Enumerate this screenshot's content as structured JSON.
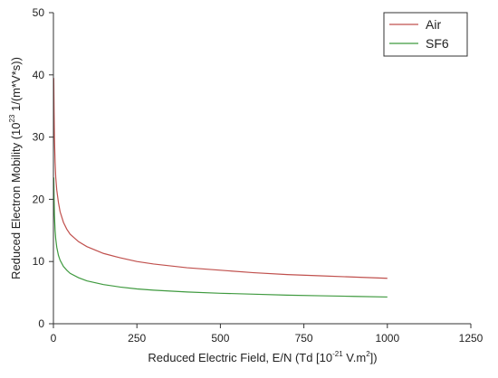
{
  "chart_data": {
    "type": "line",
    "xlabel": {
      "prefix": "Reduced Electric Field, E/N (Td [10",
      "exp1": "-21",
      "middle": " V.m",
      "exp2": "2",
      "suffix": "])"
    },
    "ylabel": {
      "prefix": "Reduced Electron Mobility (10",
      "exp": "23",
      "suffix": " 1/(m*V*s))"
    },
    "xlim": [
      0,
      1250
    ],
    "ylim": [
      0,
      50
    ],
    "xticks": [
      "0",
      "250",
      "500",
      "750",
      "1000",
      "1250"
    ],
    "yticks": [
      "0",
      "10",
      "20",
      "30",
      "40",
      "50"
    ],
    "grid": false,
    "legend_position": "top-right",
    "series": [
      {
        "name": "Air",
        "color": "#c0504d",
        "x": [
          1,
          2,
          3,
          5,
          7,
          10,
          15,
          20,
          30,
          40,
          50,
          75,
          100,
          150,
          200,
          250,
          300,
          400,
          500,
          600,
          700,
          800,
          900,
          1000
        ],
        "y": [
          39.5,
          34,
          30,
          26,
          23.5,
          21.5,
          19.5,
          18,
          16.3,
          15.2,
          14.4,
          13.2,
          12.4,
          11.3,
          10.6,
          10.0,
          9.6,
          9.0,
          8.6,
          8.2,
          7.9,
          7.7,
          7.5,
          7.3
        ]
      },
      {
        "name": "SF6",
        "color": "#3f9a3f",
        "x": [
          1,
          2,
          3,
          5,
          7,
          10,
          15,
          20,
          30,
          40,
          50,
          75,
          100,
          150,
          200,
          250,
          300,
          400,
          500,
          600,
          700,
          800,
          900,
          1000
        ],
        "y": [
          23.5,
          20,
          17.5,
          15,
          13.6,
          12.3,
          11,
          10.2,
          9.2,
          8.6,
          8.1,
          7.4,
          6.9,
          6.3,
          5.9,
          5.6,
          5.4,
          5.1,
          4.9,
          4.75,
          4.6,
          4.5,
          4.4,
          4.3
        ]
      }
    ]
  }
}
